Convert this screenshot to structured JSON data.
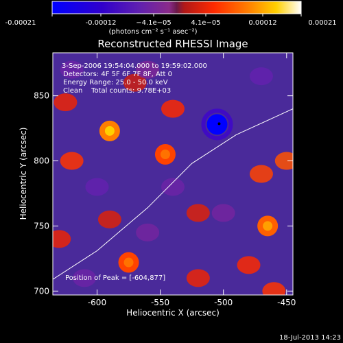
{
  "colorbar": {
    "tick_labels": [
      "-0.00021",
      "-0.00012",
      "−4.1e−05",
      "4.1e−05",
      "0.00012",
      "0.00021"
    ],
    "unit_label": "(photons cm⁻² s⁻¹ asec⁻²)",
    "value_range": [
      -0.00021,
      0.00021
    ]
  },
  "plot": {
    "title": "Reconstructed RHESSI Image",
    "info_lines": [
      "3-Sep-2006 19:54:04.000 to 19:59:02.000",
      "Detectors: 4F 5F 6F 7F 8F, Att 0",
      "Energy Range: 25.0 - 50.0 keV",
      "Clean    Total counts: 9.78E+03"
    ],
    "peak_label": "Position of Peak = [-604,877]",
    "xlabel": "Heliocentric X (arcsec)",
    "ylabel": "Heliocentric Y (arcsec)",
    "x_ticks": [
      "-600",
      "-550",
      "-500",
      "-450"
    ],
    "y_ticks": [
      "850",
      "800",
      "750",
      "700"
    ]
  },
  "footer": {
    "timestamp": "18-Jul-2013 14:23"
  },
  "colors": {
    "background": "#000000",
    "text": "#ffffff",
    "limb_line": "#ffffff"
  },
  "chart_data": {
    "type": "heatmap",
    "title": "Reconstructed RHESSI Image",
    "xlabel": "Heliocentric X (arcsec)",
    "ylabel": "Heliocentric Y (arcsec)",
    "xlim": [
      -635,
      -445
    ],
    "ylim": [
      697,
      883
    ],
    "x_ticks": [
      -600,
      -550,
      -500,
      -450
    ],
    "y_ticks": [
      700,
      750,
      800,
      850
    ],
    "color_range": [
      -0.00021,
      0.00021
    ],
    "colormap": "blue-purple-red-yellow-white",
    "peak_position": [
      -604,
      877
    ],
    "features": [
      {
        "x": -505,
        "y": 828,
        "value": -0.00021
      },
      {
        "x": -590,
        "y": 823,
        "value": 0.00012
      },
      {
        "x": -546,
        "y": 805,
        "value": 8e-05
      },
      {
        "x": -465,
        "y": 750,
        "value": 0.0001
      },
      {
        "x": -575,
        "y": 722,
        "value": 8e-05
      }
    ],
    "limb": [
      {
        "x": -635,
        "y": 709
      },
      {
        "x": -600,
        "y": 731
      },
      {
        "x": -560,
        "y": 764
      },
      {
        "x": -525,
        "y": 798
      },
      {
        "x": -490,
        "y": 820
      },
      {
        "x": -445,
        "y": 840
      }
    ]
  }
}
